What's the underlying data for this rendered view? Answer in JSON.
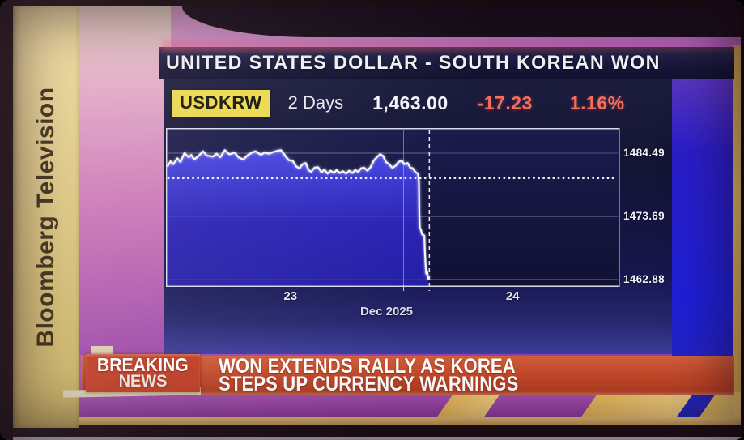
{
  "brand": {
    "vertical_label": "Bloomberg Television"
  },
  "header": {
    "title": "UNITED STATES DOLLAR - SOUTH KOREAN WON"
  },
  "ticker": {
    "symbol": "USDKRW",
    "range_label": "2 Days",
    "last": "1,463.00",
    "change": "-17.23",
    "change_pct": "1.16%"
  },
  "banner": {
    "kicker_line1": "BREAKING",
    "kicker_line2": "NEWS",
    "headline_line1": "WON EXTENDS RALLY AS KOREA",
    "headline_line2": "STEPS UP CURRENCY WARNINGS"
  },
  "colors": {
    "symbol_badge_bg": "#ecd84e",
    "negative_value": "#f4705c",
    "chart_line": "#f8f8fc",
    "chart_fill_top": "#4747e2",
    "chart_fill_bottom": "#2a22b4",
    "banner_red": "#c34a2b",
    "brand_strip_yellow": "#dcca80"
  },
  "chart_data": {
    "type": "area",
    "title": "UNITED STATES DOLLAR - SOUTH KOREAN WON",
    "ticker": "USDKRW",
    "range_label": "2 Days",
    "last": 1463.0,
    "change": -17.23,
    "change_pct": 1.16,
    "prev_close": 1480.23,
    "ylim": [
      1461.5,
      1486.5
    ],
    "y_ticks": [
      1484.49,
      1473.69,
      1462.88
    ],
    "x_ticks": [
      {
        "label": "23",
        "pos": 0.275
      },
      {
        "label": "24",
        "pos": 0.766
      }
    ],
    "x_axis_label": "Dec 2025",
    "day_divider_pos": 0.582,
    "session_line_pos": 0.525,
    "grid": true,
    "points": [
      [
        0.004,
        1482.3
      ],
      [
        0.01,
        1483.1
      ],
      [
        0.016,
        1482.6
      ],
      [
        0.025,
        1483.6
      ],
      [
        0.032,
        1483.0
      ],
      [
        0.041,
        1484.5
      ],
      [
        0.05,
        1483.8
      ],
      [
        0.056,
        1484.2
      ],
      [
        0.062,
        1483.4
      ],
      [
        0.072,
        1484.0
      ],
      [
        0.082,
        1484.8
      ],
      [
        0.09,
        1484.1
      ],
      [
        0.104,
        1483.9
      ],
      [
        0.112,
        1484.4
      ],
      [
        0.12,
        1483.8
      ],
      [
        0.13,
        1485.0
      ],
      [
        0.14,
        1484.3
      ],
      [
        0.152,
        1484.6
      ],
      [
        0.16,
        1483.8
      ],
      [
        0.171,
        1483.4
      ],
      [
        0.18,
        1484.1
      ],
      [
        0.19,
        1484.6
      ],
      [
        0.198,
        1484.8
      ],
      [
        0.21,
        1484.2
      ],
      [
        0.218,
        1484.6
      ],
      [
        0.227,
        1484.4
      ],
      [
        0.238,
        1484.7
      ],
      [
        0.247,
        1484.9
      ],
      [
        0.254,
        1485.0
      ],
      [
        0.262,
        1484.2
      ],
      [
        0.271,
        1483.3
      ],
      [
        0.28,
        1483.2
      ],
      [
        0.288,
        1482.2
      ],
      [
        0.295,
        1481.9
      ],
      [
        0.302,
        1482.6
      ],
      [
        0.309,
        1482.8
      ],
      [
        0.315,
        1481.6
      ],
      [
        0.321,
        1481.3
      ],
      [
        0.328,
        1482.0
      ],
      [
        0.336,
        1482.1
      ],
      [
        0.344,
        1481.2
      ],
      [
        0.35,
        1481.7
      ],
      [
        0.357,
        1481.0
      ],
      [
        0.364,
        1481.5
      ],
      [
        0.371,
        1481.1
      ],
      [
        0.377,
        1481.6
      ],
      [
        0.384,
        1481.1
      ],
      [
        0.391,
        1481.4
      ],
      [
        0.398,
        1481.0
      ],
      [
        0.405,
        1481.5
      ],
      [
        0.412,
        1481.1
      ],
      [
        0.418,
        1481.6
      ],
      [
        0.425,
        1481.3
      ],
      [
        0.431,
        1481.9
      ],
      [
        0.438,
        1482.0
      ],
      [
        0.445,
        1481.5
      ],
      [
        0.452,
        1482.1
      ],
      [
        0.459,
        1483.2
      ],
      [
        0.466,
        1483.8
      ],
      [
        0.473,
        1484.3
      ],
      [
        0.48,
        1484.0
      ],
      [
        0.486,
        1483.0
      ],
      [
        0.493,
        1482.6
      ],
      [
        0.5,
        1482.0
      ],
      [
        0.507,
        1482.3
      ],
      [
        0.514,
        1483.0
      ],
      [
        0.521,
        1483.2
      ],
      [
        0.527,
        1482.6
      ],
      [
        0.534,
        1482.8
      ],
      [
        0.54,
        1482.0
      ],
      [
        0.545,
        1481.9
      ],
      [
        0.552,
        1481.2
      ],
      [
        0.557,
        1481.0
      ],
      [
        0.559,
        1479.5
      ],
      [
        0.56,
        1474.0
      ],
      [
        0.561,
        1471.6
      ],
      [
        0.563,
        1471.5
      ],
      [
        0.566,
        1470.6
      ],
      [
        0.569,
        1470.5
      ],
      [
        0.571,
        1470.4
      ],
      [
        0.572,
        1468.0
      ],
      [
        0.574,
        1465.0
      ],
      [
        0.575,
        1463.9
      ],
      [
        0.577,
        1464.3
      ],
      [
        0.579,
        1463.3
      ],
      [
        0.58,
        1463.0
      ]
    ]
  }
}
